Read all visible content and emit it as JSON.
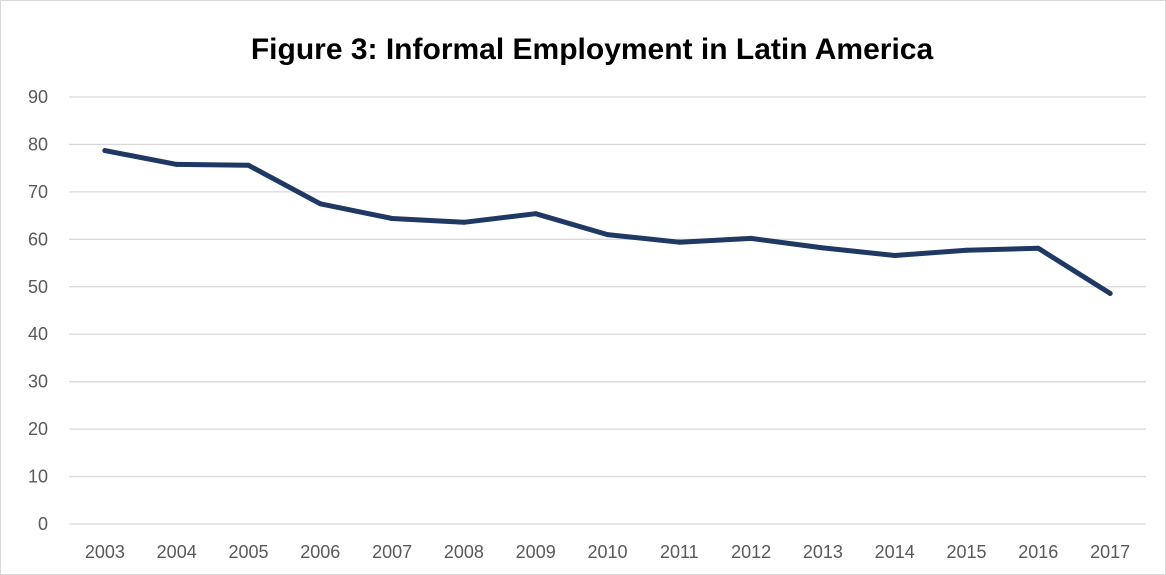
{
  "chart_data": {
    "type": "line",
    "title": "Figure 3: Informal Employment in Latin America",
    "xlabel": "",
    "ylabel": "",
    "categories": [
      "2003",
      "2004",
      "2005",
      "2006",
      "2007",
      "2008",
      "2009",
      "2010",
      "2011",
      "2012",
      "2013",
      "2014",
      "2015",
      "2016",
      "2017"
    ],
    "series": [
      {
        "values": [
          78.7,
          75.8,
          75.6,
          67.5,
          64.4,
          63.6,
          65.4,
          61.0,
          59.4,
          60.2,
          58.2,
          56.6,
          57.7,
          58.1,
          48.6
        ]
      }
    ],
    "ylim": [
      0,
      90
    ],
    "yticks": [
      "0",
      "10",
      "20",
      "30",
      "40",
      "50",
      "60",
      "70",
      "80",
      "90"
    ],
    "grid": true,
    "legend": "none",
    "line_color": "#1f3864"
  }
}
